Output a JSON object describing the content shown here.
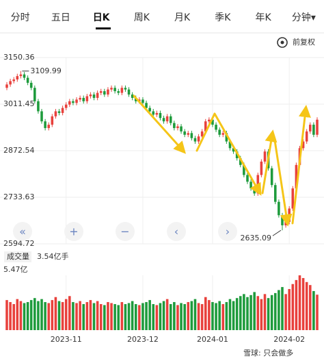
{
  "tabs": [
    "分时",
    "五日",
    "日K",
    "周K",
    "月K",
    "季K",
    "年K",
    "分钟▾"
  ],
  "active_tab": 2,
  "adjust": "前复权",
  "buttons": [
    "«",
    "+",
    "−",
    "‹",
    "›"
  ],
  "watermark": "雪球: 只会做多",
  "chart_data": {
    "type": "candlestick",
    "up_color": "#e8413c",
    "down_color": "#1e9b3c",
    "ylim": [
      2594.72,
      3150.36
    ],
    "yticks": [
      2594.72,
      2733.63,
      2872.54,
      3011.45,
      3150.36
    ],
    "xlim": [
      0,
      89
    ],
    "xticks": [
      {
        "value": 17,
        "label": "2023-11"
      },
      {
        "value": 39,
        "label": "2023-12"
      },
      {
        "value": 59,
        "label": "2024-01"
      },
      {
        "value": 81,
        "label": "2024-02"
      }
    ],
    "annotations": [
      {
        "label": "3109.99",
        "value": 3109.99
      },
      {
        "label": "2635.09",
        "value": 2635.09
      }
    ],
    "candles": [
      [
        3060,
        3077,
        3053,
        3070
      ],
      [
        3070,
        3087,
        3063,
        3080
      ],
      [
        3080,
        3092,
        3073,
        3085
      ],
      [
        3085,
        3102,
        3078,
        3095
      ],
      [
        3095,
        3109.99,
        3088,
        3100
      ],
      [
        3100,
        3107,
        3083,
        3090
      ],
      [
        3090,
        3097,
        3068,
        3075
      ],
      [
        3075,
        3082,
        3053,
        3060
      ],
      [
        3060,
        3067,
        3013,
        3020
      ],
      [
        3020,
        3027,
        2983,
        2990
      ],
      [
        2990,
        2997,
        2953,
        2960
      ],
      [
        2960,
        2967,
        2933,
        2940
      ],
      [
        2940,
        2957,
        2933,
        2950
      ],
      [
        2950,
        2982,
        2943,
        2975
      ],
      [
        2975,
        2997,
        2968,
        2990
      ],
      [
        2990,
        2997,
        2978,
        2985
      ],
      [
        2985,
        3007,
        2978,
        3000
      ],
      [
        3000,
        3017,
        2993,
        3010
      ],
      [
        3010,
        3027,
        3003,
        3020
      ],
      [
        3020,
        3027,
        3008,
        3015
      ],
      [
        3015,
        3032,
        3008,
        3025
      ],
      [
        3025,
        3037,
        3018,
        3030
      ],
      [
        3030,
        3037,
        3013,
        3020
      ],
      [
        3020,
        3042,
        3013,
        3035
      ],
      [
        3035,
        3047,
        3028,
        3040
      ],
      [
        3040,
        3047,
        3023,
        3030
      ],
      [
        3030,
        3052,
        3023,
        3045
      ],
      [
        3045,
        3057,
        3038,
        3050
      ],
      [
        3050,
        3057,
        3033,
        3040
      ],
      [
        3040,
        3062,
        3033,
        3055
      ],
      [
        3055,
        3067,
        3048,
        3060
      ],
      [
        3060,
        3067,
        3043,
        3050
      ],
      [
        3050,
        3057,
        3038,
        3045
      ],
      [
        3045,
        3067,
        3038,
        3060
      ],
      [
        3060,
        3067,
        3048,
        3055
      ],
      [
        3055,
        3062,
        3033,
        3040
      ],
      [
        3040,
        3047,
        3023,
        3030
      ],
      [
        3030,
        3037,
        3013,
        3020
      ],
      [
        3020,
        3032,
        3013,
        3025
      ],
      [
        3025,
        3032,
        3008,
        3015
      ],
      [
        3015,
        3022,
        2993,
        3000
      ],
      [
        3000,
        3007,
        2983,
        2990
      ],
      [
        2990,
        2997,
        2973,
        2980
      ],
      [
        2980,
        2992,
        2973,
        2985
      ],
      [
        2985,
        2992,
        2963,
        2970
      ],
      [
        2970,
        2977,
        2953,
        2960
      ],
      [
        2960,
        2982,
        2953,
        2975
      ],
      [
        2975,
        2982,
        2948,
        2955
      ],
      [
        2955,
        2962,
        2933,
        2940
      ],
      [
        2940,
        2952,
        2933,
        2945
      ],
      [
        2945,
        2952,
        2923,
        2930
      ],
      [
        2930,
        2937,
        2913,
        2920
      ],
      [
        2920,
        2932,
        2913,
        2925
      ],
      [
        2925,
        2932,
        2903,
        2910
      ],
      [
        2910,
        2917,
        2893,
        2900
      ],
      [
        2900,
        2922,
        2893,
        2915
      ],
      [
        2915,
        2937,
        2908,
        2930
      ],
      [
        2930,
        2967,
        2923,
        2960
      ],
      [
        2960,
        2972,
        2953,
        2965
      ],
      [
        2965,
        2972,
        2943,
        2950
      ],
      [
        2950,
        2957,
        2928,
        2935
      ],
      [
        2935,
        2942,
        2913,
        2920
      ],
      [
        2920,
        2932,
        2913,
        2925
      ],
      [
        2925,
        2932,
        2893,
        2900
      ],
      [
        2900,
        2907,
        2873,
        2880
      ],
      [
        2880,
        2887,
        2863,
        2870
      ],
      [
        2870,
        2877,
        2843,
        2850
      ],
      [
        2850,
        2857,
        2823,
        2830
      ],
      [
        2830,
        2837,
        2793,
        2800
      ],
      [
        2800,
        2807,
        2773,
        2780
      ],
      [
        2780,
        2787,
        2753,
        2760
      ],
      [
        2760,
        2767,
        2738,
        2745
      ],
      [
        2745,
        2807,
        2738,
        2800
      ],
      [
        2800,
        2847,
        2793,
        2840
      ],
      [
        2840,
        2877,
        2833,
        2870
      ],
      [
        2870,
        2877,
        2813,
        2820
      ],
      [
        2820,
        2827,
        2763,
        2770
      ],
      [
        2770,
        2777,
        2713,
        2720
      ],
      [
        2720,
        2727,
        2673,
        2680
      ],
      [
        2680,
        2687,
        2635.09,
        2650
      ],
      [
        2650,
        2667,
        2643,
        2660
      ],
      [
        2660,
        2707,
        2653,
        2700
      ],
      [
        2700,
        2767,
        2693,
        2760
      ],
      [
        2760,
        2837,
        2753,
        2830
      ],
      [
        2830,
        2887,
        2823,
        2880
      ],
      [
        2880,
        2907,
        2873,
        2900
      ],
      [
        2900,
        2937,
        2893,
        2930
      ],
      [
        2930,
        2957,
        2923,
        2950
      ],
      [
        2950,
        2957,
        2913,
        2920
      ],
      [
        2920,
        2972,
        2913,
        2965
      ]
    ],
    "volume_title": "成交量",
    "volume_value_label": "3.54亿手",
    "vlim": [
      0,
      5.47
    ],
    "vticks": [
      {
        "value": 5.47,
        "label": "5.47亿"
      }
    ],
    "volumes": [
      3.0,
      2.8,
      2.6,
      3.1,
      2.9,
      2.7,
      2.8,
      3.0,
      3.2,
      2.9,
      3.1,
      2.8,
      2.7,
      3.0,
      3.3,
      2.9,
      2.8,
      3.1,
      3.4,
      2.8,
      2.7,
      2.9,
      2.6,
      2.8,
      3.0,
      2.7,
      2.9,
      2.6,
      2.5,
      2.8,
      2.7,
      2.6,
      2.5,
      2.8,
      2.6,
      2.7,
      2.9,
      2.6,
      2.5,
      2.7,
      2.8,
      3.0,
      2.6,
      2.5,
      2.7,
      2.9,
      3.1,
      2.6,
      2.8,
      2.5,
      2.7,
      2.6,
      2.8,
      2.9,
      3.1,
      2.7,
      2.6,
      3.3,
      3.0,
      2.8,
      2.7,
      2.9,
      2.6,
      2.8,
      3.1,
      2.9,
      3.2,
      3.4,
      3.6,
      3.3,
      3.5,
      3.8,
      3.4,
      3.1,
      3.6,
      3.2,
      3.5,
      3.7,
      4.0,
      4.3,
      3.6,
      4.1,
      4.6,
      5.0,
      5.47,
      5.2,
      4.8,
      4.5,
      3.9,
      3.54
    ]
  }
}
